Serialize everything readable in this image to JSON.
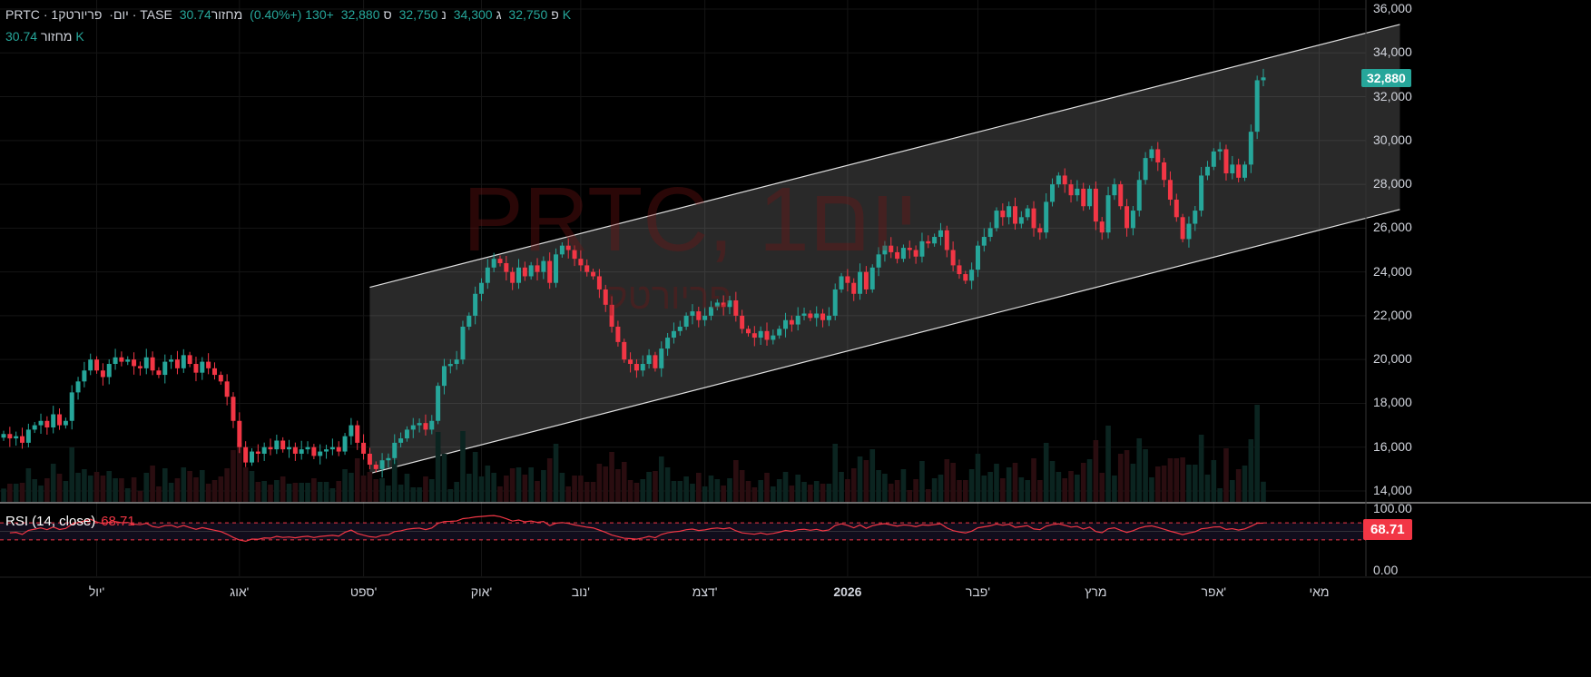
{
  "header": {
    "symbol": "PRTC",
    "interval": "1יום",
    "name": "פריורטק",
    "exchange": "TASE",
    "open_label": "פ",
    "open": "32,750",
    "high_label": "ג",
    "high": "34,300",
    "low_label": "נ",
    "low": "32,750",
    "close_label": "ס",
    "close": "32,880",
    "change": "+130 (+0.40%)",
    "volume_label": "מחזור",
    "volume": "30.74K"
  },
  "volume_row": {
    "label": "מחזור",
    "value": "30.74K"
  },
  "watermark": {
    "title": "PRTC, 1יום",
    "subtitle": "פריורטק"
  },
  "price_axis": [
    "36,000",
    "34,000",
    "32,000",
    "30,000",
    "28,000",
    "26,000",
    "24,000",
    "22,000",
    "20,000",
    "18,000",
    "16,000",
    "14,000"
  ],
  "last_price": "32,880",
  "rsi": {
    "label": "RSI (14, close)",
    "value": "68.71",
    "axis_top": "100.00",
    "axis_bottom": "0.00",
    "color": "#f23645"
  },
  "time_axis": [
    {
      "label": "יול'",
      "i": 15
    },
    {
      "label": "אוג'",
      "i": 38
    },
    {
      "label": "ספט'",
      "i": 58
    },
    {
      "label": "אוק'",
      "i": 77
    },
    {
      "label": "נוב'",
      "i": 93
    },
    {
      "label": "דצמ'",
      "i": 113
    },
    {
      "label": "2026",
      "i": 136
    },
    {
      "label": "פבר'",
      "i": 157
    },
    {
      "label": "מרץ",
      "i": 176
    },
    {
      "label": "אפר'",
      "i": 195
    },
    {
      "label": "מאי",
      "i": 212
    }
  ],
  "colors": {
    "up": "#26a69a",
    "down": "#f23645"
  },
  "chart_data": {
    "type": "candlestick",
    "ylim": [
      14000,
      36000
    ],
    "closes": [
      16.6,
      16.4,
      16.5,
      16.2,
      16.8,
      17.0,
      17.2,
      16.9,
      17.5,
      17.0,
      17.2,
      18.5,
      19.0,
      19.5,
      20.0,
      19.5,
      19.2,
      19.8,
      20.1,
      19.9,
      20.0,
      19.7,
      19.6,
      20.1,
      19.5,
      19.3,
      19.9,
      20.0,
      19.6,
      20.2,
      19.8,
      19.4,
      19.9,
      19.6,
      19.3,
      19.0,
      18.3,
      17.2,
      16.0,
      15.3,
      15.8,
      15.7,
      16.0,
      15.9,
      16.3,
      15.9,
      16.0,
      15.7,
      15.9,
      16.0,
      15.6,
      15.8,
      15.9,
      16.0,
      15.8,
      16.5,
      17.0,
      16.2,
      15.7,
      15.2,
      15.0,
      15.4,
      15.5,
      16.2,
      16.4,
      16.8,
      17.0,
      17.1,
      16.8,
      17.2,
      18.8,
      19.7,
      19.8,
      20.0,
      21.5,
      22.0,
      23.0,
      23.5,
      24.2,
      24.6,
      24.4,
      24.0,
      23.5,
      24.2,
      23.8,
      24.3,
      24.0,
      24.5,
      23.5,
      24.8,
      25.2,
      25.0,
      24.6,
      24.3,
      24.0,
      23.8,
      23.2,
      22.5,
      21.5,
      20.8,
      20.0,
      19.8,
      19.5,
      19.8,
      20.2,
      19.6,
      20.5,
      21.0,
      21.3,
      21.5,
      22.0,
      22.2,
      21.8,
      22.0,
      22.4,
      22.6,
      22.4,
      22.7,
      22.0,
      21.4,
      21.2,
      21.0,
      21.3,
      20.9,
      21.1,
      21.4,
      21.8,
      21.6,
      22.0,
      22.1,
      21.9,
      22.1,
      21.8,
      22.0,
      23.2,
      23.8,
      23.5,
      23.0,
      24.0,
      23.2,
      24.2,
      24.8,
      25.2,
      24.9,
      24.6,
      25.1,
      25.0,
      24.7,
      25.4,
      25.3,
      25.6,
      25.9,
      25.0,
      24.3,
      23.9,
      23.6,
      24.1,
      25.2,
      25.6,
      26.0,
      26.8,
      26.5,
      27.0,
      26.2,
      26.5,
      26.9,
      26.0,
      25.8,
      27.2,
      28.0,
      28.4,
      28.0,
      27.5,
      27.8,
      27.0,
      27.8,
      26.3,
      25.8,
      27.5,
      28.0,
      27.0,
      26.0,
      26.8,
      28.2,
      29.2,
      29.6,
      29.0,
      28.2,
      27.3,
      26.5,
      25.5,
      26.2,
      26.8,
      28.4,
      28.8,
      29.5,
      29.6,
      28.5,
      28.9,
      28.3,
      28.9,
      30.4,
      32.75,
      32.88
    ],
    "channel": {
      "upper": [
        [
          59,
          23300
        ],
        [
          225,
          35300
        ]
      ],
      "lower": [
        [
          59,
          14800
        ],
        [
          225,
          26850
        ]
      ]
    }
  }
}
